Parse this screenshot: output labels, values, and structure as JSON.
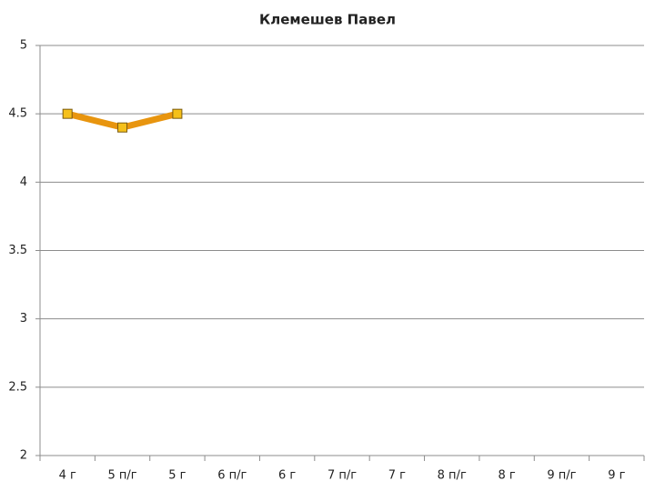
{
  "chart_data": {
    "type": "line",
    "title": "Клемешев Павел",
    "categories": [
      "4 г",
      "5 п/г",
      "5 г",
      "6 п/г",
      "6 г",
      "7 п/г",
      "7 г",
      "8 п/г",
      "8 г",
      "9 п/г",
      "9 г"
    ],
    "series": [
      {
        "name": "Клемешев Павел",
        "color": "#e8950f",
        "marker_color": "#f5c01a",
        "values": [
          4.5,
          4.4,
          4.5,
          null,
          null,
          null,
          null,
          null,
          null,
          null,
          null
        ]
      }
    ],
    "ylim": [
      2,
      5
    ],
    "yticks": [
      2,
      2.5,
      3,
      3.5,
      4,
      4.5,
      5
    ],
    "grid": true
  }
}
